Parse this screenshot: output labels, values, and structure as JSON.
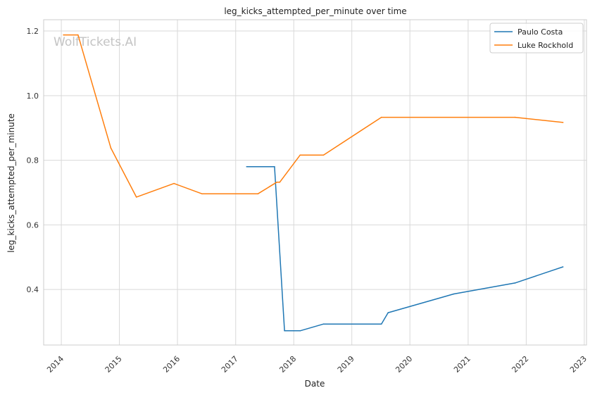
{
  "watermark": "WolfTickets.AI",
  "colors": {
    "paulo_costa": "#1f77b4",
    "luke_rockhold": "#ff7f0e",
    "grid": "#d9d9d9",
    "axes_edge": "#cccccc"
  },
  "chart_data": {
    "type": "line",
    "title": "leg_kicks_attempted_per_minute over time",
    "xlabel": "Date",
    "ylabel": "leg_kicks_attempted_per_minute",
    "x_type": "date",
    "xlim": [
      "2013-09-12",
      "2023-01-15"
    ],
    "ylim": [
      0.228,
      1.235
    ],
    "x_ticks": [
      "2014",
      "2015",
      "2016",
      "2017",
      "2018",
      "2019",
      "2020",
      "2021",
      "2022",
      "2023"
    ],
    "y_ticks": [
      "0.4",
      "0.6",
      "0.8",
      "1.0",
      "1.2"
    ],
    "grid": true,
    "legend_position": "top-right",
    "series": [
      {
        "name": "Paulo Costa",
        "color": "#1f77b4",
        "points": [
          [
            "2017-03-11",
            0.78
          ],
          [
            "2017-09-02",
            0.78
          ],
          [
            "2017-11-04",
            0.272
          ],
          [
            "2018-02-10",
            0.272
          ],
          [
            "2018-07-07",
            0.293
          ],
          [
            "2019-07-06",
            0.293
          ],
          [
            "2019-08-17",
            0.328
          ],
          [
            "2020-10-03",
            0.386
          ],
          [
            "2021-10-23",
            0.42
          ],
          [
            "2022-08-20",
            0.47
          ]
        ]
      },
      {
        "name": "Luke Rockhold",
        "color": "#ff7f0e",
        "points": [
          [
            "2014-01-15",
            1.188
          ],
          [
            "2014-04-16",
            1.188
          ],
          [
            "2014-11-08",
            0.838
          ],
          [
            "2015-04-18",
            0.686
          ],
          [
            "2015-12-10",
            0.728
          ],
          [
            "2016-06-04",
            0.696
          ],
          [
            "2017-05-20",
            0.696
          ],
          [
            "2017-09-16",
            0.732
          ],
          [
            "2017-10-05",
            0.732
          ],
          [
            "2018-02-10",
            0.816
          ],
          [
            "2018-07-07",
            0.816
          ],
          [
            "2019-07-06",
            0.933
          ],
          [
            "2021-10-23",
            0.933
          ],
          [
            "2022-08-20",
            0.917
          ]
        ]
      }
    ]
  }
}
